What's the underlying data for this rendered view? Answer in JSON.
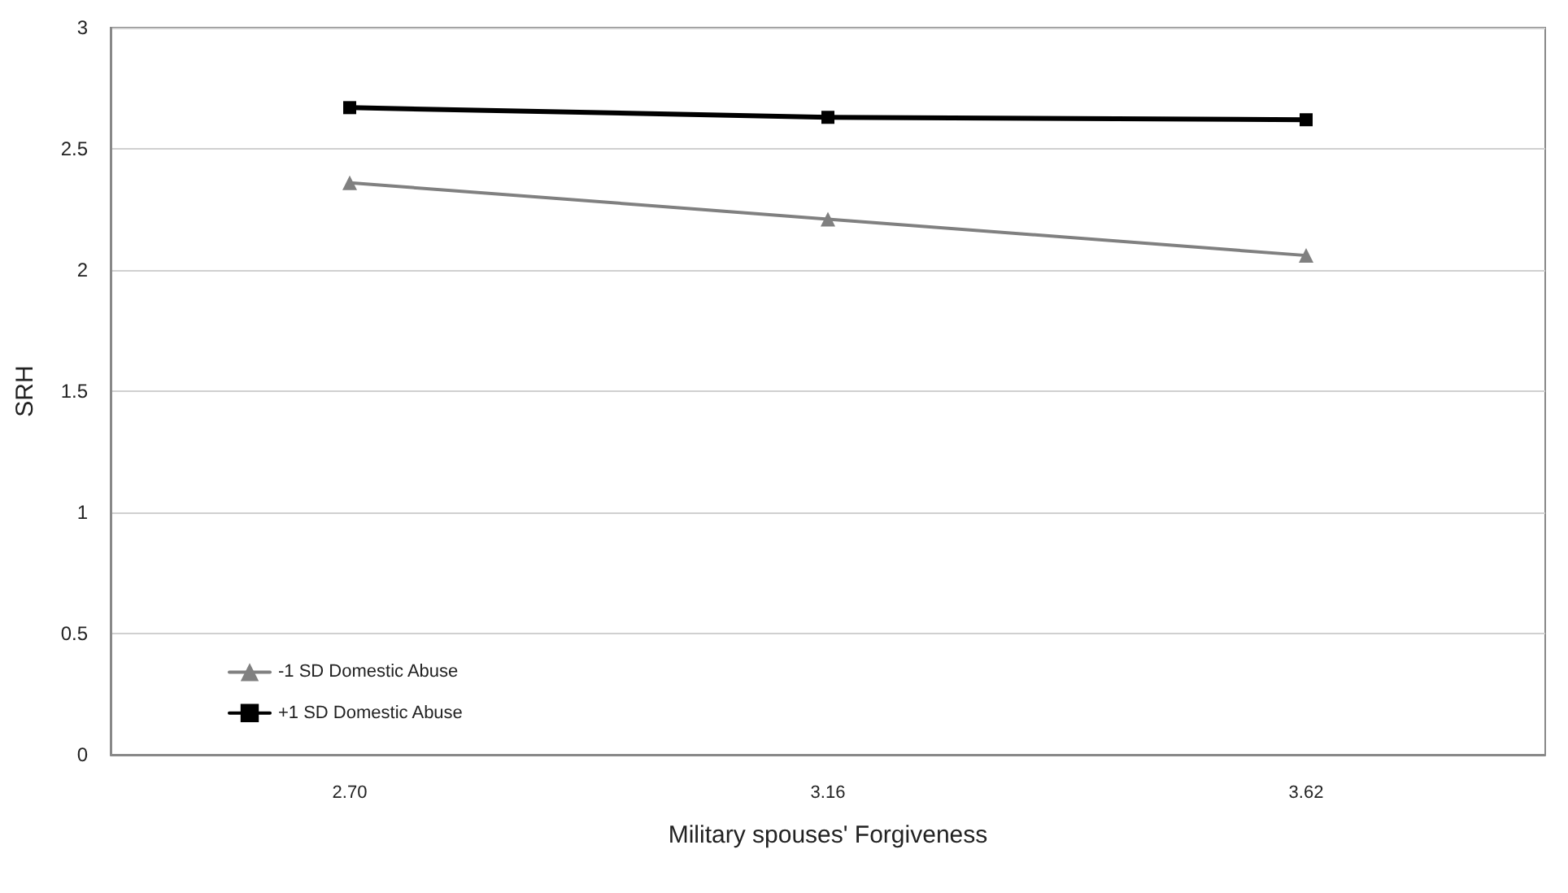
{
  "chart_data": {
    "type": "line",
    "xlabel": "Military spouses' Forgiveness",
    "ylabel": "SRH",
    "categories": [
      "2.70",
      "3.16",
      "3.62"
    ],
    "series": [
      {
        "name": "-1 SD Domestic Abuse",
        "color": "#808080",
        "marker": "triangle",
        "values": [
          2.36,
          2.21,
          2.06
        ]
      },
      {
        "name": "+1 SD Domestic Abuse",
        "color": "#000000",
        "marker": "square",
        "values": [
          2.67,
          2.63,
          2.62
        ]
      }
    ],
    "ylim": [
      0,
      3
    ],
    "yticks": [
      0,
      0.5,
      1,
      1.5,
      2,
      2.5,
      3
    ],
    "grid": "y",
    "legend": "bottom left",
    "line_style": "solid"
  }
}
